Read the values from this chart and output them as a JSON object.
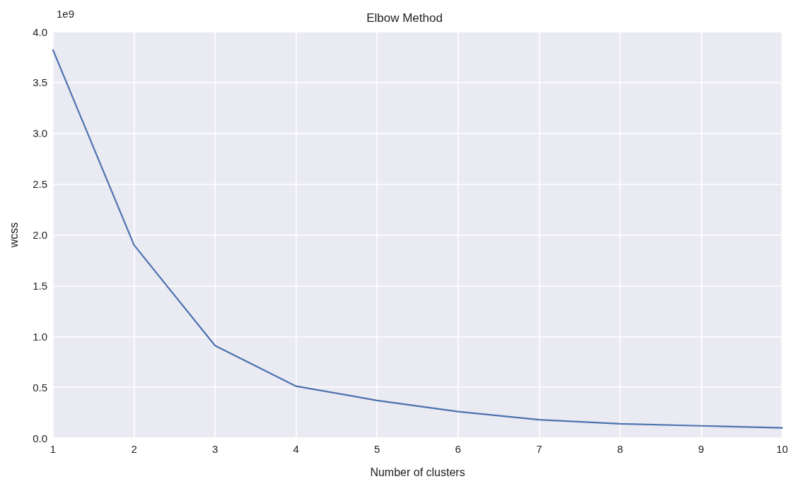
{
  "chart_data": {
    "type": "line",
    "title": "Elbow Method",
    "xlabel": "Number of clusters",
    "ylabel": "wcss",
    "annotations": [
      "1e9"
    ],
    "x": [
      1,
      2,
      3,
      4,
      5,
      6,
      7,
      8,
      9,
      10
    ],
    "series": [
      {
        "color": "#4c72b0",
        "values": [
          3.82,
          1.9,
          0.91,
          0.51,
          0.37,
          0.26,
          0.18,
          0.14,
          0.12,
          0.1
        ]
      }
    ],
    "xlim": [
      1,
      10
    ],
    "xticks": [
      1,
      2,
      3,
      4,
      5,
      6,
      7,
      8,
      9,
      10
    ],
    "ylim": [
      0,
      4
    ],
    "yticks": [
      {
        "value": 0,
        "label": "0.0"
      },
      {
        "value": 0.5,
        "label": "0.5"
      },
      {
        "value": 1,
        "label": "1.0"
      },
      {
        "value": 1.5,
        "label": "1.5"
      },
      {
        "value": 2,
        "label": "2.0"
      },
      {
        "value": 2.5,
        "label": "2.5"
      },
      {
        "value": 3,
        "label": "3.0"
      },
      {
        "value": 3.5,
        "label": "3.5"
      },
      {
        "value": 4,
        "label": "4.0"
      }
    ],
    "grid": true,
    "marker": "none",
    "line_style": "solid"
  }
}
